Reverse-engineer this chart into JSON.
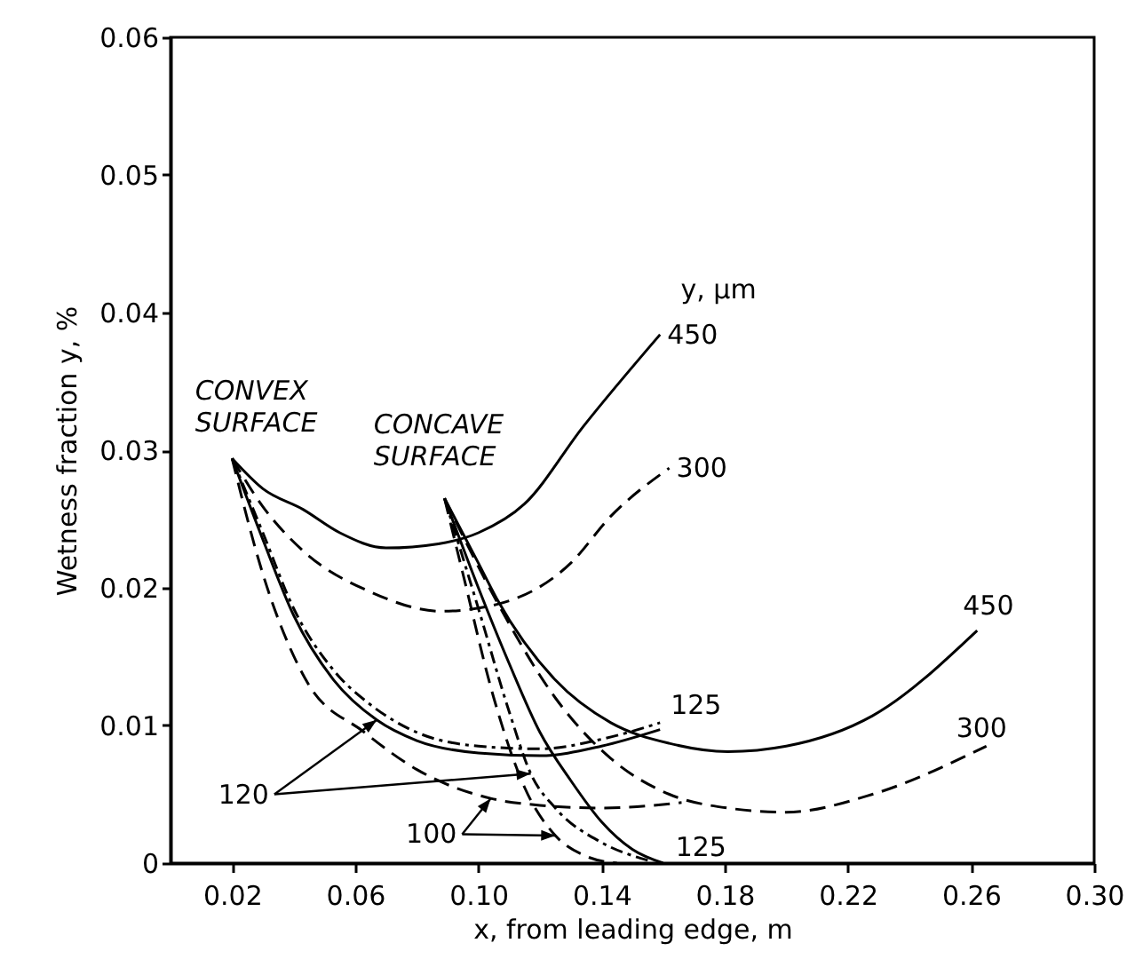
{
  "chart_data": {
    "type": "line",
    "xlabel": "x, from leading edge, m",
    "ylabel": "Wetness fraction y, %",
    "xlim": [
      0,
      0.3
    ],
    "xticks": [
      0.02,
      0.06,
      {
        "value": 0.1,
        "label": "0.10"
      },
      0.14,
      0.18,
      0.22,
      0.26,
      {
        "value": 0.3,
        "label": "0.30"
      }
    ],
    "ylim": [
      0,
      0.06
    ],
    "yticks": [
      0,
      0.01,
      0.02,
      0.03,
      0.04,
      0.05,
      0.06
    ],
    "grid": false,
    "annotations": [
      "CONVEX SURFACE",
      "CONCAVE SURFACE",
      "y, µm",
      {
        "text": "120",
        "x": 0.067,
        "y": 0.0104
      },
      {
        "text": "100",
        "x": 0.104,
        "y": 0.0047
      }
    ],
    "series": [
      {
        "name": "450",
        "color": "#000000",
        "line_style": "solid",
        "x": [
          0.02,
          0.03,
          0.043,
          0.055,
          0.07,
          0.087,
          0.1,
          0.115,
          0.134,
          0.159
        ],
        "values": [
          0.0294,
          0.0272,
          0.0257,
          0.024,
          0.0229,
          0.0232,
          0.024,
          0.0261,
          0.0317,
          0.0384
        ]
      },
      {
        "name": "300",
        "color": "#000000",
        "line_style": "dashed",
        "x": [
          0.02,
          0.03,
          0.043,
          0.065,
          0.088,
          0.106,
          0.13,
          0.143,
          0.162
        ],
        "values": [
          0.0294,
          0.0259,
          0.0227,
          0.0197,
          0.0183,
          0.0188,
          0.0218,
          0.0252,
          0.0287
        ]
      },
      {
        "name": "125",
        "color": "#000000",
        "line_style": "dotted",
        "x": [
          0.02,
          0.03,
          0.04,
          0.053,
          0.065,
          0.08,
          0.1,
          0.12,
          0.14,
          0.159
        ],
        "values": [
          0.0294,
          0.024,
          0.0185,
          0.014,
          0.0115,
          0.0095,
          0.0085,
          0.0083,
          0.009,
          0.0102
        ]
      },
      {
        "color": "#000000",
        "line_style": "solid",
        "x": [
          0.02,
          0.03,
          0.04,
          0.053,
          0.067,
          0.08,
          0.1,
          0.12,
          0.14,
          0.159
        ],
        "values": [
          0.0294,
          0.0235,
          0.018,
          0.0133,
          0.0104,
          0.0089,
          0.008,
          0.0078,
          0.0085,
          0.0097
        ]
      },
      {
        "color": "#000000",
        "line_style": "dashed",
        "x": [
          0.02,
          0.03,
          0.044,
          0.063,
          0.08,
          0.104,
          0.12,
          0.14,
          0.166
        ],
        "values": [
          0.0294,
          0.021,
          0.0133,
          0.0095,
          0.0068,
          0.0047,
          0.0042,
          0.004,
          0.0044
        ]
      },
      {
        "name": "450",
        "color": "#000000",
        "line_style": "solid",
        "x": [
          0.089,
          0.1,
          0.106,
          0.125,
          0.143,
          0.162,
          0.181,
          0.2,
          0.228,
          0.262
        ],
        "values": [
          0.0265,
          0.0218,
          0.0192,
          0.0133,
          0.0102,
          0.0087,
          0.0081,
          0.0085,
          0.0107,
          0.0169
        ]
      },
      {
        "name": "300",
        "color": "#000000",
        "line_style": "dashed",
        "x": [
          0.089,
          0.106,
          0.125,
          0.143,
          0.162,
          0.181,
          0.2,
          0.228,
          0.265
        ],
        "values": [
          0.0265,
          0.019,
          0.012,
          0.0076,
          0.005,
          0.004,
          0.0037,
          0.005,
          0.0085
        ]
      },
      {
        "name": "125",
        "color": "#000000",
        "line_style": "solid",
        "x": [
          0.089,
          0.1,
          0.11,
          0.12,
          0.13,
          0.14,
          0.15,
          0.16
        ],
        "values": [
          0.0265,
          0.02,
          0.0145,
          0.0095,
          0.006,
          0.003,
          0.001,
          0.0
        ]
      },
      {
        "color": "#000000",
        "line_style": "dotted",
        "x": [
          0.089,
          0.1,
          0.11,
          0.117,
          0.125,
          0.14,
          0.155
        ],
        "values": [
          0.0265,
          0.0185,
          0.011,
          0.0065,
          0.004,
          0.0015,
          0.0002
        ]
      },
      {
        "color": "#000000",
        "line_style": "dashed",
        "x": [
          0.089,
          0.095,
          0.105,
          0.115,
          0.125,
          0.135,
          0.145
        ],
        "values": [
          0.0265,
          0.021,
          0.012,
          0.0055,
          0.002,
          0.0005,
          0.0
        ]
      }
    ]
  }
}
